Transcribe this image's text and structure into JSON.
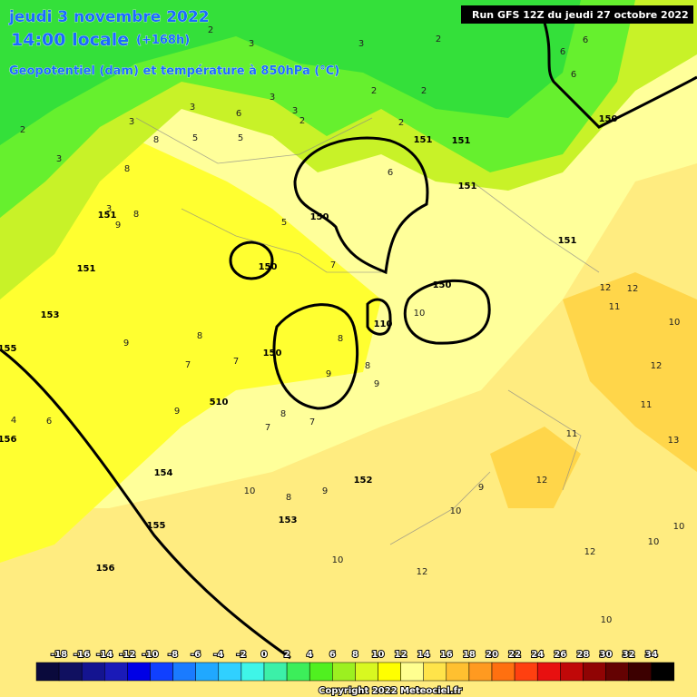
{
  "header": {
    "date": "jeudi 3 novembre 2022",
    "time": "14:00 locale",
    "lead": "(+168h)",
    "field": "Geopotentiel (dam) et température à 850hPa (°C)",
    "run": "Run GFS 12Z du jeudi 27 octobre 2022"
  },
  "map": {
    "geopotential_labels": [
      "151",
      "151",
      "153",
      "155",
      "156",
      "154",
      "155",
      "156",
      "150",
      "150",
      "150",
      "150",
      "150",
      "151",
      "151",
      "151",
      "151",
      "152",
      "153",
      "110",
      "510"
    ],
    "temperature_labels": [
      "2",
      "3",
      "2",
      "3",
      "2",
      "3",
      "3",
      "2",
      "3",
      "2",
      "2",
      "2",
      "6",
      "6",
      "6",
      "3",
      "3",
      "3",
      "8",
      "5",
      "5",
      "6",
      "6",
      "8",
      "9",
      "8",
      "8",
      "5",
      "7",
      "8",
      "7",
      "9",
      "8",
      "9",
      "8",
      "7",
      "7",
      "8",
      "10",
      "10",
      "10",
      "12",
      "12",
      "12",
      "12",
      "12",
      "11",
      "11",
      "13",
      "10",
      "10",
      "10",
      "9",
      "9",
      "10",
      "9",
      "10",
      "12",
      "11",
      "4",
      "6",
      "7",
      "9"
    ]
  },
  "legend": {
    "ticks": [
      -18,
      -16,
      -14,
      -12,
      -10,
      -8,
      -6,
      -4,
      -2,
      0,
      2,
      4,
      6,
      8,
      10,
      12,
      14,
      16,
      18,
      20,
      22,
      24,
      26,
      28,
      30,
      32,
      34
    ],
    "colors": [
      "#0a0a3c",
      "#101060",
      "#141490",
      "#1a1ab8",
      "#0000e6",
      "#1040ff",
      "#1a7bff",
      "#20a8ff",
      "#30d0ff",
      "#3ff5e8",
      "#3cf0a8",
      "#3cee5a",
      "#50f020",
      "#9cf020",
      "#d8f820",
      "#ffff00",
      "#ffff90",
      "#ffe44a",
      "#ffc030",
      "#ff9a20",
      "#ff7010",
      "#ff4010",
      "#e81010",
      "#c00808",
      "#900404",
      "#640202",
      "#3c0000",
      "#000000"
    ],
    "copyright": "Copyright 2022 Meteociel.fr"
  }
}
